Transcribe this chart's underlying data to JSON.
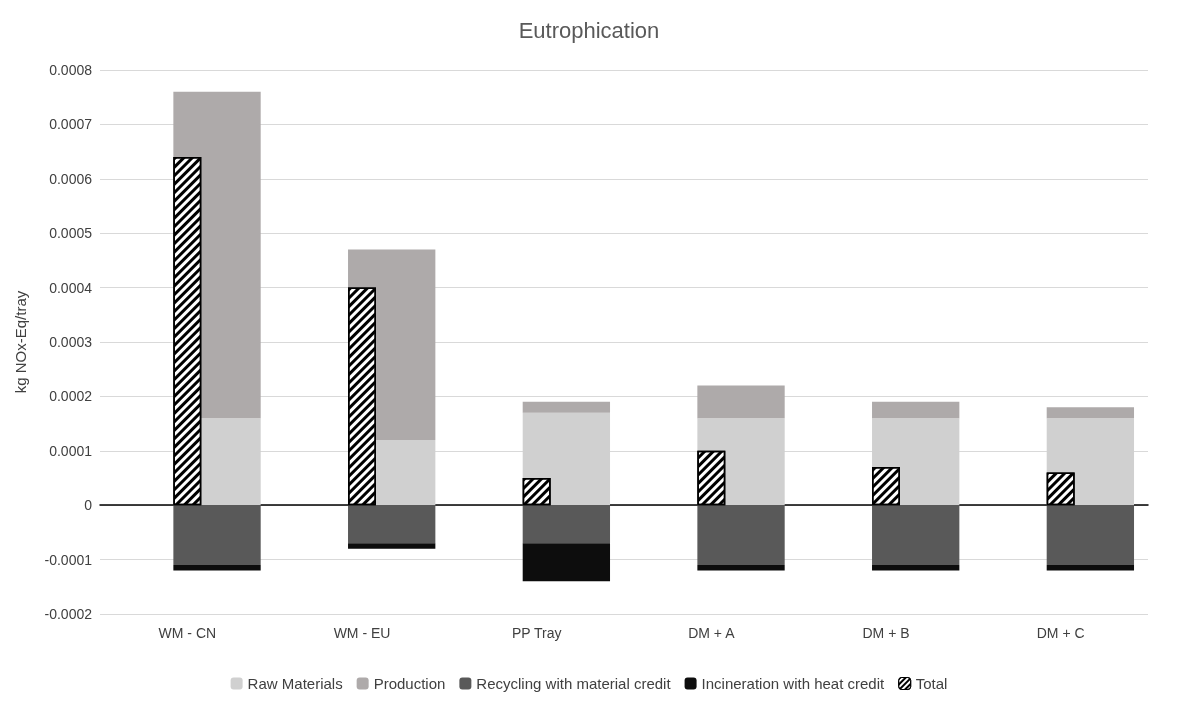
{
  "chart_data": {
    "type": "bar",
    "title": "Eutrophication",
    "ylabel": "kg NOx-Eq/tray",
    "categories": [
      "WM - CN",
      "WM - EU",
      "PP Tray",
      "DM + A",
      "DM + B",
      "DM + C"
    ],
    "series": [
      {
        "name": "Raw Materials",
        "color": "#d0d0d0",
        "base": [
          0,
          0,
          0,
          0,
          0,
          0
        ],
        "values": [
          0.00016,
          0.00012,
          0.00017,
          0.00016,
          0.00016,
          0.00016
        ]
      },
      {
        "name": "Production",
        "color": "#aeaaaa",
        "base": [
          0.00016,
          0.00012,
          0.00017,
          0.00016,
          0.00016,
          0.00016
        ],
        "values": [
          0.0006,
          0.00035,
          2e-05,
          6e-05,
          3e-05,
          2e-05
        ]
      },
      {
        "name": "Recycling with material credit",
        "color": "#595959",
        "base": [
          0,
          0,
          0,
          0,
          0,
          0
        ],
        "values": [
          -0.00011,
          -7e-05,
          -7e-05,
          -0.00011,
          -0.00011,
          -0.00011
        ]
      },
      {
        "name": "Incineration with heat credit",
        "color": "#0d0d0d",
        "base": [
          -0.00011,
          -7e-05,
          -7e-05,
          -0.00011,
          -0.00011,
          -0.00011
        ],
        "values": [
          -1e-05,
          -1e-05,
          -7e-05,
          -1e-05,
          -1e-05,
          -1e-05
        ]
      },
      {
        "name": "Total",
        "color": "#000000",
        "values": [
          0.00064,
          0.0004,
          5e-05,
          0.0001,
          7e-05,
          6e-05
        ]
      }
    ],
    "ylim": [
      -0.0002,
      0.0008
    ],
    "yticks": [
      -0.0002,
      -0.0001,
      0,
      0.0001,
      0.0002,
      0.0003,
      0.0004,
      0.0005,
      0.0006,
      0.0007,
      0.0008
    ],
    "grid": "y",
    "legend": "bottom"
  }
}
